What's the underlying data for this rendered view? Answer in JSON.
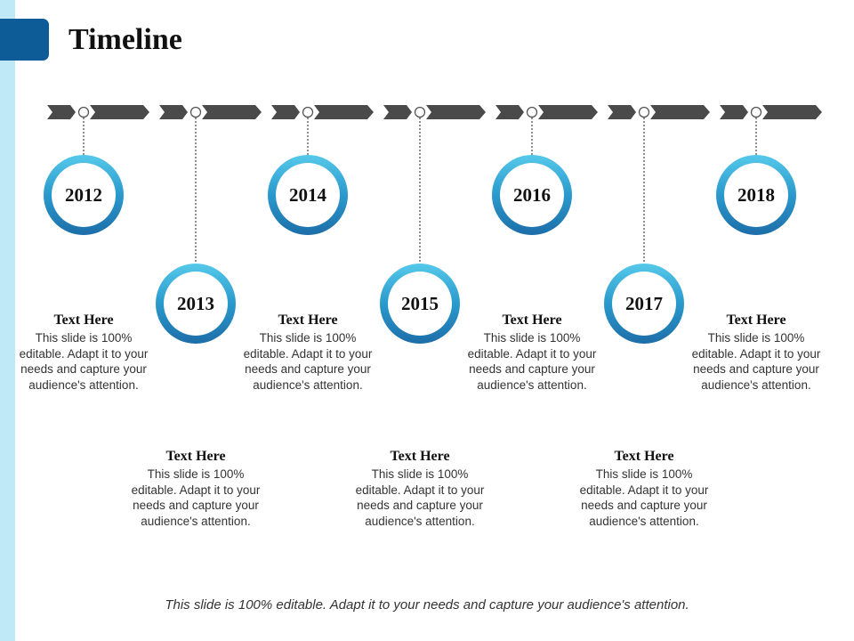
{
  "title": "Timeline",
  "footer": "This slide is 100% editable. Adapt it to your needs and capture your audience's attention.",
  "colors": {
    "accent": "#0d5b97",
    "strip": "#bfe9f6",
    "arrow": "#4a4a4a",
    "ring_light": "#55c9ea",
    "ring_dark": "#1d6ea9"
  },
  "milestones": [
    {
      "year": "2012",
      "heading": "Text Here",
      "body": "This slide is 100% editable. Adapt it to your needs and capture your audience's attention."
    },
    {
      "year": "2013",
      "heading": "Text Here",
      "body": "This slide is 100% editable. Adapt it to your needs and capture your audience's attention."
    },
    {
      "year": "2014",
      "heading": "Text Here",
      "body": "This slide is 100% editable. Adapt it to your needs and capture your audience's attention."
    },
    {
      "year": "2015",
      "heading": "Text Here",
      "body": "This slide is 100% editable. Adapt it to your needs and capture your audience's attention."
    },
    {
      "year": "2016",
      "heading": "Text Here",
      "body": "This slide is 100% editable. Adapt it to your needs and capture your audience's attention."
    },
    {
      "year": "2017",
      "heading": "Text Here",
      "body": "This slide is 100% editable. Adapt it to your needs and capture your audience's attention."
    },
    {
      "year": "2018",
      "heading": "Text Here",
      "body": "This slide is 100% editable. Adapt it to your needs and capture your audience's attention."
    }
  ]
}
